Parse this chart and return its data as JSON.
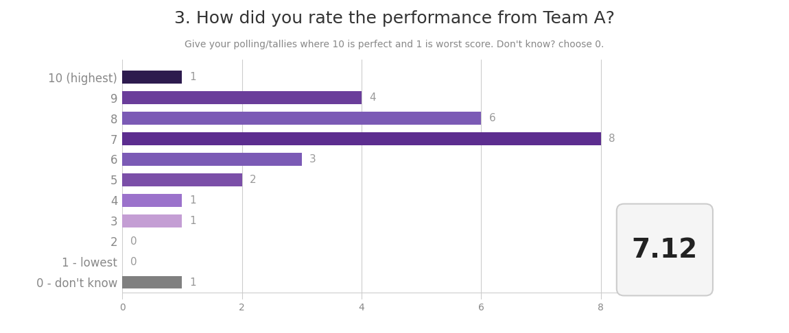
{
  "title": "3. How did you rate the performance from Team A?",
  "subtitle": "Give your polling/tallies where 10 is perfect and 1 is worst score. Don't know? choose 0.",
  "categories": [
    "10 (highest)",
    "9",
    "8",
    "7",
    "6",
    "5",
    "4",
    "3",
    "2",
    "1 - lowest",
    "0 - don't know"
  ],
  "values": [
    1,
    4,
    6,
    8,
    3,
    2,
    1,
    1,
    0,
    0,
    1
  ],
  "bar_colors": [
    "#2d1b4e",
    "#6a3d9a",
    "#7b5ab5",
    "#5c2d8f",
    "#7b5ab5",
    "#7b4fa8",
    "#9b72cb",
    "#c49ed4",
    "#ffffff",
    "#ffffff",
    "#808080"
  ],
  "weighted_avg": "7.12",
  "xlim": [
    0,
    9.5
  ],
  "xticks": [
    0,
    2,
    4,
    6,
    8
  ],
  "xtick_labels": [
    "0",
    "2",
    "4",
    "6",
    "8"
  ],
  "background_color": "#ffffff",
  "grid_color": "#cccccc",
  "title_color": "#333333",
  "subtitle_color": "#888888",
  "label_color": "#888888",
  "value_color": "#999999",
  "bar_height": 0.62,
  "title_fontsize": 18,
  "subtitle_fontsize": 10,
  "label_fontsize": 12,
  "value_fontsize": 11,
  "badge_text_color": "#222222",
  "badge_bg": "#f5f5f5",
  "badge_edge": "#cccccc"
}
